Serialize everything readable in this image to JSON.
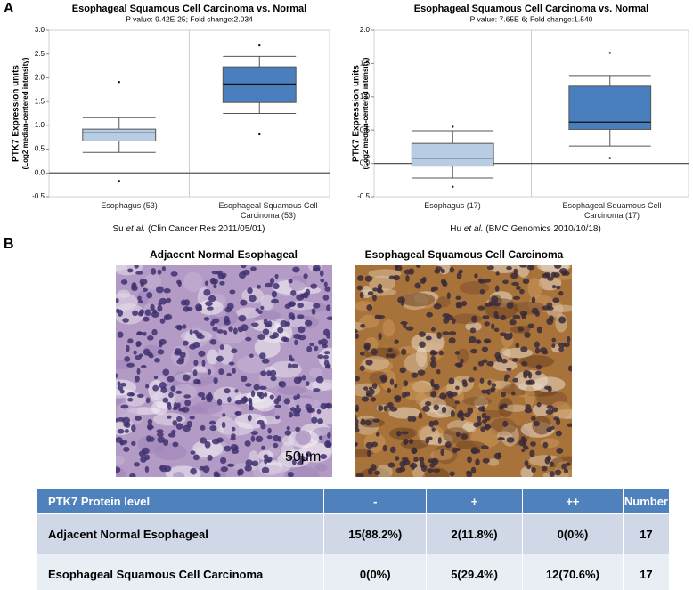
{
  "panel_labels": [
    "A",
    "B"
  ],
  "chart_data": [
    {
      "type": "box",
      "title": "Esophageal Squamous Cell Carcinoma vs. Normal",
      "subtitle": "P value: 9.42E-25;  Fold change:2.034",
      "ylabel": "PTK7 Expression units",
      "ylabel_sub": "(Log2 median-centered intensity)",
      "categories": [
        "Esophagus (53)",
        "Esophageal Squamous Cell Carcinoma (53)"
      ],
      "colors": [
        "#b8cce4",
        "#4a7fbf"
      ],
      "boxes": [
        {
          "min": 0.43,
          "q1": 0.67,
          "median": 0.84,
          "q3": 0.92,
          "max": 1.16,
          "outliers": [
            1.91,
            -0.17
          ]
        },
        {
          "min": 1.25,
          "q1": 1.48,
          "median": 1.87,
          "q3": 2.23,
          "max": 2.45,
          "outliers": [
            2.68,
            0.81
          ]
        }
      ],
      "ylim": [
        -0.5,
        3.0
      ],
      "yticks": [
        -0.5,
        {
          "value": 0,
          "label": "0.0"
        },
        0.5,
        {
          "value": 1,
          "label": "1.0"
        },
        1.5,
        {
          "value": 2,
          "label": "2.0"
        },
        2.5,
        {
          "value": 3,
          "label": "3.0"
        }
      ],
      "source_author": "Su",
      "source_etal": "et al.",
      "source_ref": "(Clin Cancer Res 2011/05/01)"
    },
    {
      "type": "box",
      "title": "Esophageal Squamous Cell Carcinoma vs. Normal",
      "subtitle": "P value: 7.65E-6;  Fold change:1.540",
      "ylabel": "PTK7 Expression units",
      "ylabel_sub": "(Log2 median-centered intensity)",
      "categories": [
        "Esophagus (17)",
        "Esophageal Squamous Cell Carcinoma (17)"
      ],
      "colors": [
        "#b8cce4",
        "#4a7fbf"
      ],
      "boxes": [
        {
          "min": -0.22,
          "q1": -0.04,
          "median": 0.08,
          "q3": 0.3,
          "max": 0.49,
          "outliers": [
            0.55,
            -0.35
          ]
        },
        {
          "min": 0.26,
          "q1": 0.51,
          "median": 0.62,
          "q3": 1.16,
          "max": 1.32,
          "outliers": [
            1.66,
            0.08
          ]
        }
      ],
      "ylim": [
        -0.5,
        2.0
      ],
      "yticks": [
        -0.5,
        {
          "value": 0,
          "label": "0.0"
        },
        0.5,
        {
          "value": 1,
          "label": "1.0"
        },
        1.5,
        {
          "value": 2,
          "label": "2.0"
        }
      ],
      "source_author": "Hu",
      "source_etal": "et al.",
      "source_ref": "(BMC Genomics 2010/10/18)"
    }
  ],
  "images": [
    {
      "title": "Adjacent Normal Esophageal",
      "scale_bar": "50μm"
    },
    {
      "title": "Esophageal Squamous Cell Carcinoma"
    }
  ],
  "table": {
    "header": [
      "PTK7 Protein level",
      "-",
      "+",
      "++",
      "Number"
    ],
    "rows": [
      [
        "Adjacent Normal Esophageal",
        "15(88.2%)",
        "2(11.8%)",
        "0(0%)",
        "17"
      ],
      [
        "Esophageal  Squamous Cell Carcinoma",
        "0(0%)",
        "5(29.4%)",
        "12(70.6%)",
        "17"
      ]
    ]
  }
}
